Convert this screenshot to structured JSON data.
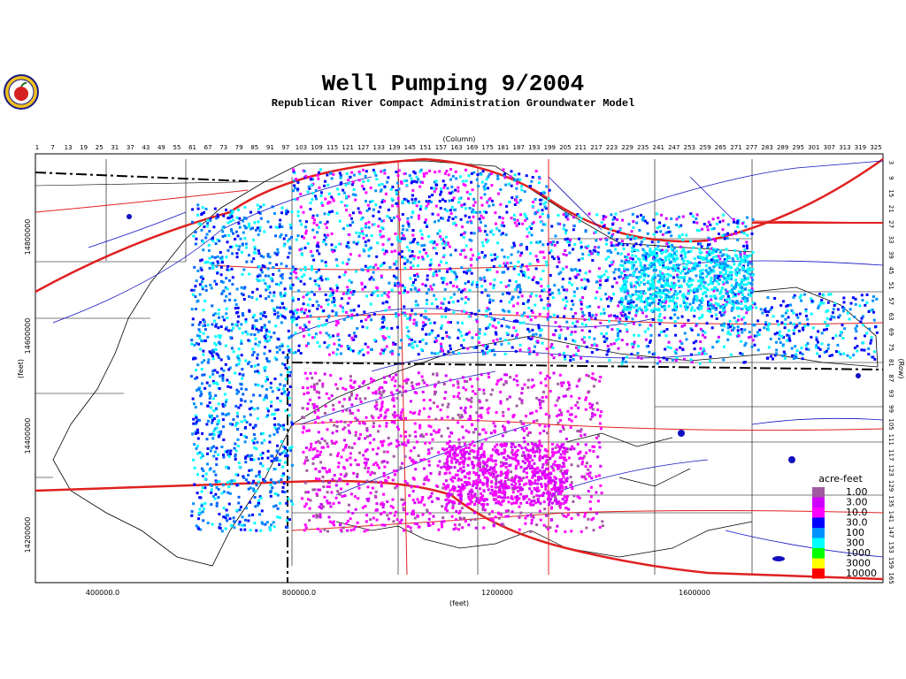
{
  "title": "Well Pumping  9/2004",
  "subtitle": "Republican River Compact Administration Groundwater Model",
  "logo": {
    "icon": "apple-seal-logo",
    "colors": [
      "#1a1a80",
      "#d62020",
      "#f0c020"
    ]
  },
  "top_axis": {
    "label": "(Column)",
    "ticks": [
      "1",
      "7",
      "13",
      "19",
      "25",
      "31",
      "37",
      "43",
      "49",
      "55",
      "61",
      "67",
      "73",
      "79",
      "85",
      "91",
      "97",
      "103",
      "109",
      "115",
      "121",
      "127",
      "133",
      "139",
      "145",
      "151",
      "157",
      "163",
      "169",
      "175",
      "181",
      "187",
      "193",
      "199",
      "205",
      "211",
      "217",
      "223",
      "229",
      "235",
      "241",
      "247",
      "253",
      "259",
      "265",
      "271",
      "277",
      "283",
      "289",
      "295",
      "301",
      "307",
      "313",
      "319",
      "325"
    ]
  },
  "right_axis": {
    "label": "(Row)",
    "ticks": [
      "3",
      "9",
      "15",
      "21",
      "27",
      "33",
      "39",
      "45",
      "51",
      "57",
      "63",
      "69",
      "75",
      "81",
      "87",
      "93",
      "99",
      "105",
      "111",
      "117",
      "123",
      "129",
      "135",
      "141",
      "147",
      "153",
      "159",
      "165"
    ]
  },
  "bottom_axis": {
    "label": "(feet)",
    "ticks": [
      "400000.0",
      "800000.0",
      "1200000",
      "1600000"
    ]
  },
  "left_axis": {
    "label": "(feet)",
    "ticks": [
      "14800000",
      "14600000",
      "14400000",
      "14200000"
    ]
  },
  "legend": {
    "title": "acre-feet",
    "entries": [
      {
        "label": "1.00",
        "color": "#a05aa0"
      },
      {
        "label": "3.00",
        "color": "#d000ff"
      },
      {
        "label": "10.0",
        "color": "#ff00ff"
      },
      {
        "label": "30.0",
        "color": "#0000ff"
      },
      {
        "label": "100",
        "color": "#0090ff"
      },
      {
        "label": "300",
        "color": "#00ffff"
      },
      {
        "label": "1000",
        "color": "#00ff00"
      },
      {
        "label": "3000",
        "color": "#ffff00"
      },
      {
        "label": "10000",
        "color": "#ff0000"
      }
    ]
  },
  "colors": {
    "rivers": "#1010c0",
    "roads": "#e02020",
    "boundary": "#000000"
  }
}
